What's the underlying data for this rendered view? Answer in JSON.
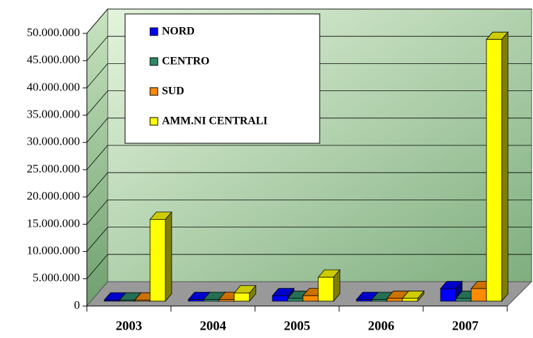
{
  "chart_data": {
    "type": "bar3d",
    "categories": [
      "2003",
      "2004",
      "2005",
      "2006",
      "2007"
    ],
    "series": [
      {
        "name": "NORD",
        "color": "#0000ff",
        "values": [
          200000,
          300000,
          1000000,
          300000,
          2300000
        ]
      },
      {
        "name": "CENTRO",
        "color": "#2e8b68",
        "values": [
          200000,
          300000,
          500000,
          300000,
          500000
        ]
      },
      {
        "name": "SUD",
        "color": "#ff8c00",
        "values": [
          200000,
          300000,
          1000000,
          500000,
          2300000
        ]
      },
      {
        "name": "AMM.NI CENTRALI",
        "color": "#ffff00",
        "values": [
          15000000,
          1500000,
          4400000,
          500000,
          48000000
        ]
      }
    ],
    "ylim": [
      0,
      50000000
    ],
    "yticks": [
      0,
      {
        "value": 5000000,
        "label": "5.000.000"
      },
      {
        "value": 10000000,
        "label": "10.000.000"
      },
      {
        "value": 15000000,
        "label": "15.000.000"
      },
      {
        "value": 20000000,
        "label": "20.000.000"
      },
      {
        "value": 25000000,
        "label": "25.000.000"
      },
      {
        "value": 30000000,
        "label": "30.000.000"
      },
      {
        "value": 35000000,
        "label": "35.000.000"
      },
      {
        "value": 40000000,
        "label": "40.000.000"
      },
      {
        "value": 45000000,
        "label": "45.000.000"
      },
      {
        "value": 50000000,
        "label": "50.000.000"
      }
    ],
    "grid": true,
    "legend": "top-left"
  }
}
